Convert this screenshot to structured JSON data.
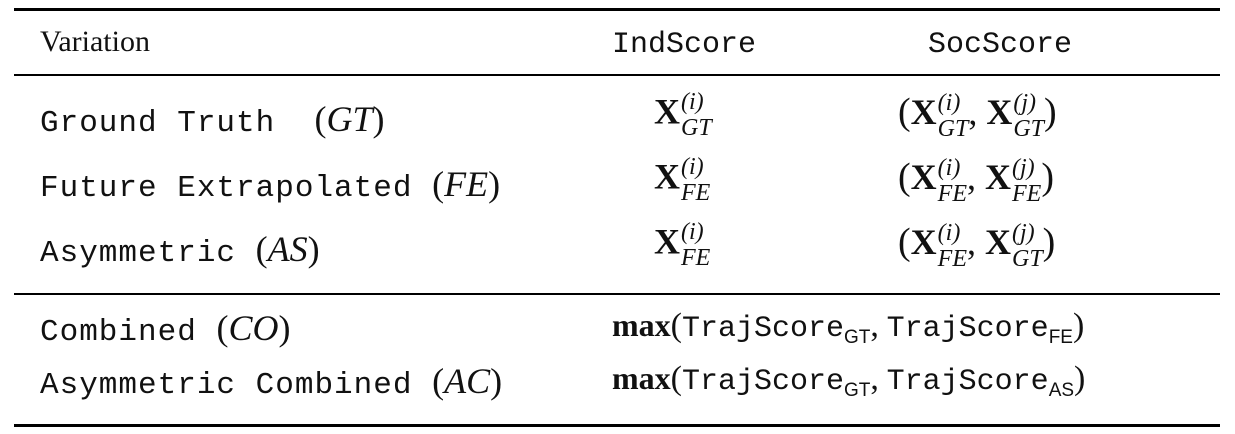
{
  "header": {
    "variation": "Variation",
    "indscore": "IndScore",
    "socscore": "SocScore"
  },
  "rows": [
    {
      "name": "Ground Truth",
      "abbr": "GT",
      "ind": {
        "sup": "(i)",
        "sub": "GT"
      },
      "soc": [
        {
          "sup": "(i)",
          "sub": "GT"
        },
        {
          "sup": "(j)",
          "sub": "GT"
        }
      ]
    },
    {
      "name": "Future Extrapolated",
      "abbr": "FE",
      "ind": {
        "sup": "(i)",
        "sub": "FE"
      },
      "soc": [
        {
          "sup": "(i)",
          "sub": "FE"
        },
        {
          "sup": "(j)",
          "sub": "FE"
        }
      ]
    },
    {
      "name": "Asymmetric",
      "abbr": "AS",
      "ind": {
        "sup": "(i)",
        "sub": "FE"
      },
      "soc": [
        {
          "sup": "(i)",
          "sub": "FE"
        },
        {
          "sup": "(j)",
          "sub": "GT"
        }
      ]
    }
  ],
  "combined_rows": [
    {
      "name": "Combined",
      "abbr": "CO",
      "func": "max",
      "arg1": "TrajScore",
      "sub1": "GT",
      "arg2": "TrajScore",
      "sub2": "FE"
    },
    {
      "name": "Asymmetric Combined",
      "abbr": "AC",
      "func": "max",
      "arg1": "TrajScore",
      "sub1": "GT",
      "arg2": "TrajScore",
      "sub2": "AS"
    }
  ],
  "symbols": {
    "X": "X",
    "open_paren": "(",
    "close_paren": ")",
    "comma": ","
  }
}
